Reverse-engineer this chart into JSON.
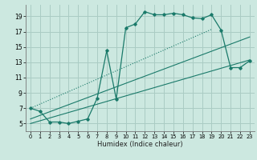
{
  "xlabel": "Humidex (Indice chaleur)",
  "bg_color": "#cce8e0",
  "grid_color": "#aaccc4",
  "line_color": "#1a7a6a",
  "xlim": [
    -0.5,
    23.5
  ],
  "ylim": [
    4,
    20.5
  ],
  "xticks": [
    0,
    1,
    2,
    3,
    4,
    5,
    6,
    7,
    8,
    9,
    10,
    11,
    12,
    13,
    14,
    15,
    16,
    17,
    18,
    19,
    20,
    21,
    22,
    23
  ],
  "yticks": [
    5,
    7,
    9,
    11,
    13,
    15,
    17,
    19
  ],
  "curve_x": [
    0,
    1,
    2,
    3,
    4,
    5,
    6,
    7,
    8,
    9,
    10,
    11,
    12,
    13,
    14,
    15,
    16,
    17,
    18,
    19,
    20,
    21,
    22,
    23
  ],
  "curve_y": [
    7.0,
    6.6,
    5.2,
    5.2,
    5.0,
    5.3,
    5.6,
    8.3,
    14.5,
    8.2,
    17.5,
    18.0,
    19.6,
    19.2,
    19.2,
    19.4,
    19.2,
    18.8,
    18.7,
    19.2,
    17.2,
    12.3,
    12.3,
    13.2
  ],
  "line1_x": [
    0,
    19
  ],
  "line1_y": [
    7.0,
    17.3
  ],
  "line2_x": [
    0,
    23
  ],
  "line2_y": [
    5.6,
    16.3
  ],
  "line3_x": [
    0,
    23
  ],
  "line3_y": [
    5.0,
    13.3
  ]
}
